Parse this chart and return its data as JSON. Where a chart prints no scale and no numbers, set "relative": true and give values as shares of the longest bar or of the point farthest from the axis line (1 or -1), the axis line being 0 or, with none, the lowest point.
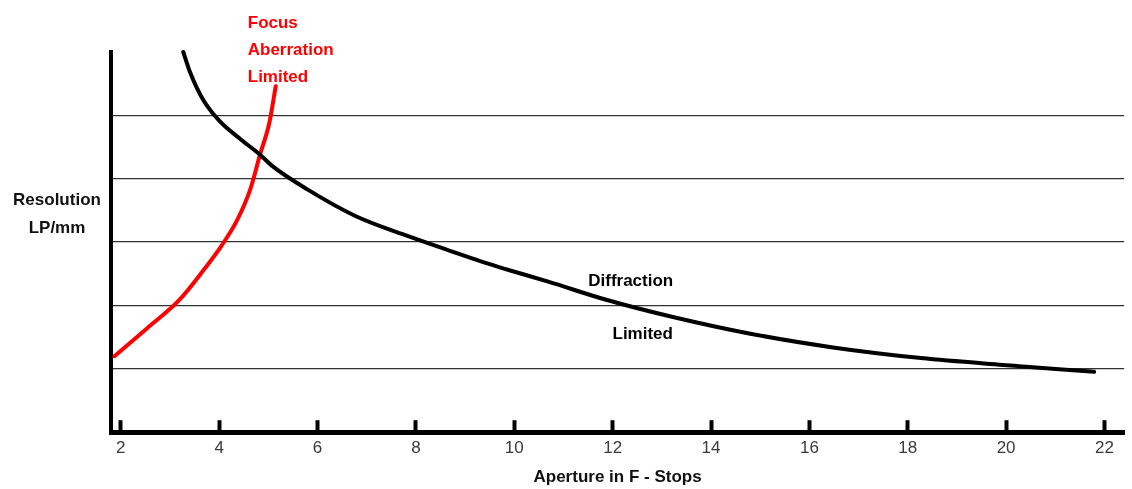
{
  "chart_data": {
    "type": "line",
    "xlabel": "Aperture in F - Stops",
    "ylabel": "Resolution LP/mm",
    "relative": true,
    "grid": "y",
    "xlim": [
      1.8,
      22.4
    ],
    "xticks": [
      2,
      4,
      6,
      8,
      10,
      12,
      14,
      16,
      18,
      20,
      22
    ],
    "series": [
      {
        "name": "Diffraction Limited",
        "color": "#000000",
        "x": [
          3.27,
          3.41,
          3.67,
          4.01,
          4.44,
          4.83,
          5.09,
          5.8,
          6.78,
          7.7,
          8.65,
          9.4,
          9.85,
          10.69,
          11.85,
          13.16,
          14.8,
          16.48,
          18.27,
          19.93,
          21.79
        ],
        "values": [
          1,
          0.946,
          0.875,
          0.818,
          0.77,
          0.73,
          0.699,
          0.638,
          0.568,
          0.522,
          0.479,
          0.446,
          0.428,
          0.396,
          0.349,
          0.305,
          0.259,
          0.223,
          0.195,
          0.177,
          0.159
        ]
      },
      {
        "name": "Focus Aberration Limited",
        "color": "#ff0000",
        "x": [
          1.87,
          2.53,
          3.19,
          3.71,
          4.04,
          4.37,
          4.63,
          4.83,
          5.02,
          5.15
        ],
        "values": [
          0.2,
          0.273,
          0.348,
          0.431,
          0.489,
          0.559,
          0.638,
          0.73,
          0.814,
          0.91
        ]
      }
    ]
  }
}
